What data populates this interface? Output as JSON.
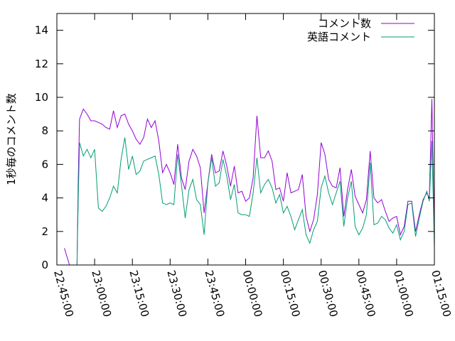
{
  "chart_data": {
    "type": "line",
    "title": "",
    "xlabel": "",
    "ylabel": "1秒毎のコメント数",
    "xlim": [
      "22:45:00",
      "01:15:00"
    ],
    "ylim": [
      0,
      15
    ],
    "x_ticks": [
      "22:45:00",
      "23:00:00",
      "23:15:00",
      "23:30:00",
      "23:45:00",
      "00:00:00",
      "00:15:00",
      "00:30:00",
      "00:45:00",
      "01:00:00",
      "01:15:00"
    ],
    "y_ticks": [
      0,
      2,
      4,
      6,
      8,
      10,
      12,
      14
    ],
    "grid": false,
    "legend_position": "top-right",
    "series": [
      {
        "name": "コメント数",
        "color": "#9400d3",
        "points": [
          [
            "22:48:00",
            1.0
          ],
          [
            "22:50:00",
            0.0
          ],
          [
            "22:53:00",
            0.0
          ],
          [
            "22:53:30",
            5.2
          ],
          [
            "22:54:00",
            8.7
          ],
          [
            "22:55:30",
            9.3
          ],
          [
            "22:57:00",
            9.0
          ],
          [
            "22:58:30",
            8.6
          ],
          [
            "23:00:00",
            8.6
          ],
          [
            "23:01:30",
            8.5
          ],
          [
            "23:03:00",
            8.4
          ],
          [
            "23:04:30",
            8.2
          ],
          [
            "23:06:00",
            8.1
          ],
          [
            "23:07:30",
            9.2
          ],
          [
            "23:09:00",
            8.2
          ],
          [
            "23:10:30",
            8.9
          ],
          [
            "23:12:00",
            9.0
          ],
          [
            "23:13:30",
            8.4
          ],
          [
            "23:15:00",
            8.0
          ],
          [
            "23:16:30",
            7.5
          ],
          [
            "23:18:00",
            7.2
          ],
          [
            "23:19:30",
            7.6
          ],
          [
            "23:21:00",
            8.7
          ],
          [
            "23:22:30",
            8.2
          ],
          [
            "23:24:00",
            8.6
          ],
          [
            "23:25:30",
            7.4
          ],
          [
            "23:27:00",
            5.5
          ],
          [
            "23:28:30",
            6.0
          ],
          [
            "23:30:00",
            5.5
          ],
          [
            "23:31:30",
            4.8
          ],
          [
            "23:33:00",
            7.2
          ],
          [
            "23:34:30",
            5.2
          ],
          [
            "23:36:00",
            4.5
          ],
          [
            "23:37:30",
            6.2
          ],
          [
            "23:39:00",
            6.9
          ],
          [
            "23:40:30",
            6.5
          ],
          [
            "23:42:00",
            5.8
          ],
          [
            "23:43:30",
            3.1
          ],
          [
            "23:45:00",
            4.9
          ],
          [
            "23:46:30",
            6.6
          ],
          [
            "23:48:00",
            5.5
          ],
          [
            "23:49:30",
            5.6
          ],
          [
            "23:51:00",
            6.8
          ],
          [
            "23:52:30",
            5.9
          ],
          [
            "23:54:00",
            4.7
          ],
          [
            "23:55:30",
            5.9
          ],
          [
            "23:57:00",
            4.3
          ],
          [
            "23:58:30",
            4.4
          ],
          [
            "00:00:00",
            3.8
          ],
          [
            "00:01:30",
            4.0
          ],
          [
            "00:03:00",
            5.2
          ],
          [
            "00:04:30",
            8.9
          ],
          [
            "00:06:00",
            6.4
          ],
          [
            "00:07:30",
            6.4
          ],
          [
            "00:09:00",
            6.8
          ],
          [
            "00:10:30",
            6.2
          ],
          [
            "00:12:00",
            4.5
          ],
          [
            "00:13:30",
            4.6
          ],
          [
            "00:15:00",
            3.8
          ],
          [
            "00:16:30",
            5.5
          ],
          [
            "00:18:00",
            4.3
          ],
          [
            "00:19:30",
            4.4
          ],
          [
            "00:21:00",
            4.5
          ],
          [
            "00:22:30",
            5.4
          ],
          [
            "00:24:00",
            2.9
          ],
          [
            "00:25:30",
            2.0
          ],
          [
            "00:27:00",
            2.7
          ],
          [
            "00:28:30",
            4.2
          ],
          [
            "00:30:00",
            7.3
          ],
          [
            "00:31:30",
            6.6
          ],
          [
            "00:33:00",
            5.1
          ],
          [
            "00:34:30",
            4.7
          ],
          [
            "00:36:00",
            4.6
          ],
          [
            "00:37:30",
            5.8
          ],
          [
            "00:39:00",
            2.9
          ],
          [
            "00:40:30",
            4.5
          ],
          [
            "00:42:00",
            5.7
          ],
          [
            "00:43:30",
            4.1
          ],
          [
            "00:45:00",
            3.6
          ],
          [
            "00:46:30",
            3.1
          ],
          [
            "00:48:00",
            3.9
          ],
          [
            "00:49:30",
            6.8
          ],
          [
            "00:51:00",
            4.0
          ],
          [
            "00:52:30",
            3.7
          ],
          [
            "00:54:00",
            3.9
          ],
          [
            "00:55:30",
            3.2
          ],
          [
            "00:57:00",
            2.6
          ],
          [
            "00:58:30",
            2.8
          ],
          [
            "01:00:00",
            2.9
          ],
          [
            "01:01:30",
            1.8
          ],
          [
            "01:03:00",
            2.3
          ],
          [
            "01:04:30",
            3.8
          ],
          [
            "01:06:00",
            3.8
          ],
          [
            "01:07:30",
            2.0
          ],
          [
            "01:09:00",
            3.0
          ],
          [
            "01:10:30",
            3.9
          ],
          [
            "01:12:00",
            4.3
          ],
          [
            "01:13:00",
            4.0
          ],
          [
            "01:14:00",
            9.9
          ],
          [
            "01:15:00",
            1.5
          ]
        ]
      },
      {
        "name": "英語コメント",
        "color": "#009e73",
        "points": [
          [
            "22:53:00",
            0.0
          ],
          [
            "22:53:30",
            4.0
          ],
          [
            "22:54:00",
            7.3
          ],
          [
            "22:55:30",
            6.5
          ],
          [
            "22:57:00",
            6.9
          ],
          [
            "22:58:30",
            6.4
          ],
          [
            "23:00:00",
            6.9
          ],
          [
            "23:01:30",
            3.4
          ],
          [
            "23:03:00",
            3.2
          ],
          [
            "23:04:30",
            3.5
          ],
          [
            "23:06:00",
            4.0
          ],
          [
            "23:07:30",
            4.7
          ],
          [
            "23:09:00",
            4.3
          ],
          [
            "23:10:30",
            6.3
          ],
          [
            "23:12:00",
            7.6
          ],
          [
            "23:13:30",
            5.7
          ],
          [
            "23:15:00",
            6.5
          ],
          [
            "23:16:30",
            5.4
          ],
          [
            "23:18:00",
            5.6
          ],
          [
            "23:19:30",
            6.2
          ],
          [
            "23:21:00",
            6.3
          ],
          [
            "23:22:30",
            6.4
          ],
          [
            "23:24:00",
            6.5
          ],
          [
            "23:25:30",
            5.4
          ],
          [
            "23:27:00",
            3.7
          ],
          [
            "23:28:30",
            3.6
          ],
          [
            "23:30:00",
            3.7
          ],
          [
            "23:31:30",
            3.6
          ],
          [
            "23:33:00",
            6.6
          ],
          [
            "23:34:30",
            4.8
          ],
          [
            "23:36:00",
            2.8
          ],
          [
            "23:37:30",
            4.5
          ],
          [
            "23:39:00",
            5.1
          ],
          [
            "23:40:30",
            3.9
          ],
          [
            "23:42:00",
            3.6
          ],
          [
            "23:43:30",
            1.8
          ],
          [
            "23:45:00",
            4.9
          ],
          [
            "23:46:30",
            6.4
          ],
          [
            "23:48:00",
            4.7
          ],
          [
            "23:49:30",
            4.9
          ],
          [
            "23:51:00",
            6.3
          ],
          [
            "23:52:30",
            5.3
          ],
          [
            "23:54:00",
            3.9
          ],
          [
            "23:55:30",
            4.8
          ],
          [
            "23:57:00",
            3.1
          ],
          [
            "23:58:30",
            3.0
          ],
          [
            "00:00:00",
            3.0
          ],
          [
            "00:01:30",
            2.9
          ],
          [
            "00:03:00",
            4.3
          ],
          [
            "00:04:30",
            6.4
          ],
          [
            "00:06:00",
            4.3
          ],
          [
            "00:07:30",
            4.8
          ],
          [
            "00:09:00",
            5.1
          ],
          [
            "00:10:30",
            4.6
          ],
          [
            "00:12:00",
            3.7
          ],
          [
            "00:13:30",
            4.2
          ],
          [
            "00:15:00",
            3.1
          ],
          [
            "00:16:30",
            3.5
          ],
          [
            "00:18:00",
            2.9
          ],
          [
            "00:19:30",
            2.1
          ],
          [
            "00:21:00",
            2.7
          ],
          [
            "00:22:30",
            3.3
          ],
          [
            "00:24:00",
            1.8
          ],
          [
            "00:25:30",
            1.3
          ],
          [
            "00:27:00",
            2.1
          ],
          [
            "00:28:30",
            2.6
          ],
          [
            "00:30:00",
            4.6
          ],
          [
            "00:31:30",
            5.3
          ],
          [
            "00:33:00",
            4.3
          ],
          [
            "00:34:30",
            3.6
          ],
          [
            "00:36:00",
            4.3
          ],
          [
            "00:37:30",
            5.0
          ],
          [
            "00:39:00",
            2.3
          ],
          [
            "00:40:30",
            4.0
          ],
          [
            "00:42:00",
            5.0
          ],
          [
            "00:43:30",
            2.3
          ],
          [
            "00:45:00",
            1.8
          ],
          [
            "00:46:30",
            2.2
          ],
          [
            "00:48:00",
            3.0
          ],
          [
            "00:49:30",
            6.1
          ],
          [
            "00:51:00",
            2.4
          ],
          [
            "00:52:30",
            2.5
          ],
          [
            "00:54:00",
            2.9
          ],
          [
            "00:55:30",
            2.7
          ],
          [
            "00:57:00",
            2.2
          ],
          [
            "00:58:30",
            1.9
          ],
          [
            "01:00:00",
            2.4
          ],
          [
            "01:01:30",
            1.5
          ],
          [
            "01:03:00",
            2.0
          ],
          [
            "01:04:30",
            3.6
          ],
          [
            "01:06:00",
            3.7
          ],
          [
            "01:07:30",
            1.7
          ],
          [
            "01:09:00",
            2.8
          ],
          [
            "01:10:30",
            3.8
          ],
          [
            "01:12:00",
            4.4
          ],
          [
            "01:13:00",
            3.8
          ],
          [
            "01:14:00",
            7.4
          ],
          [
            "01:15:00",
            1.0
          ]
        ]
      }
    ]
  }
}
